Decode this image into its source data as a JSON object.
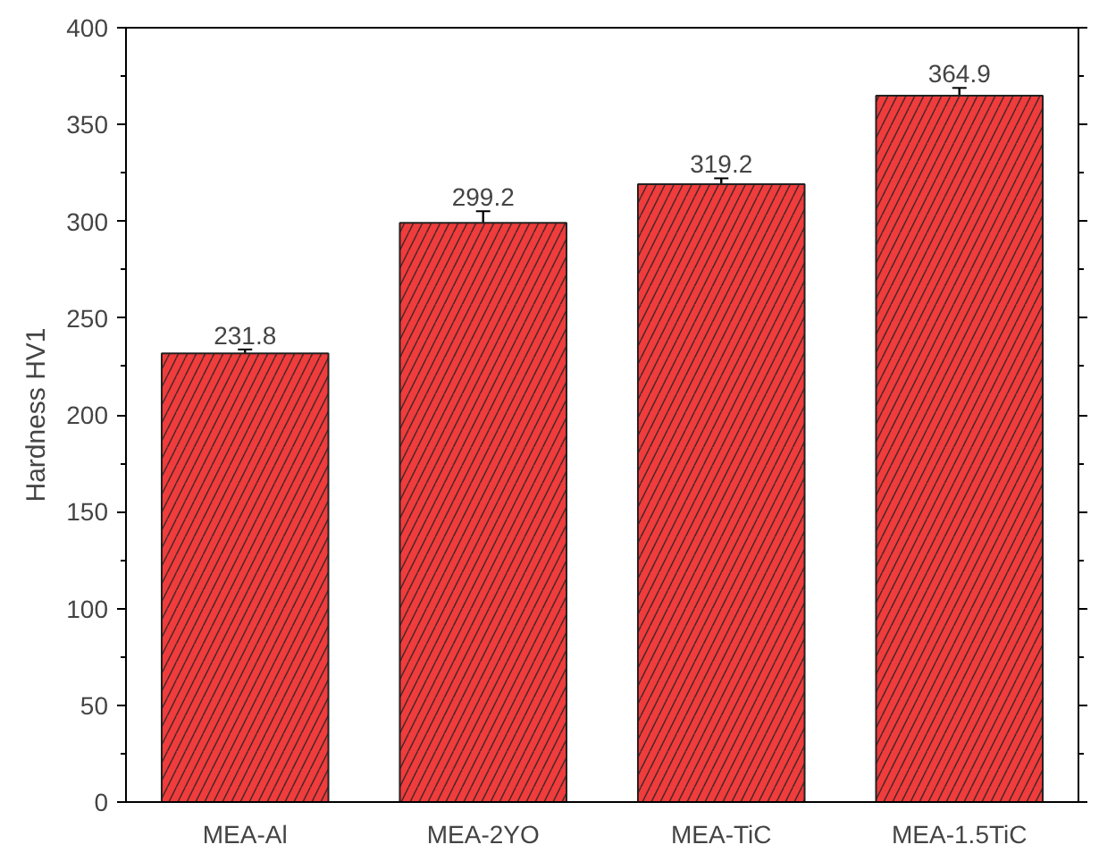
{
  "chart_data": {
    "type": "bar",
    "ylabel": "Hardness HV1",
    "categories": [
      "MEA-Al",
      "MEA-2YO",
      "MEA-TiC",
      "MEA-1.5TiC"
    ],
    "values": [
      231.8,
      299.2,
      319.2,
      364.9
    ],
    "errors": [
      2,
      6,
      3,
      4
    ],
    "color": "#f03c3c",
    "data_labels": true,
    "ylim": [
      0,
      400
    ],
    "yticks": [
      0,
      50,
      100,
      150,
      200,
      250,
      300,
      350,
      400
    ],
    "grid": false
  }
}
